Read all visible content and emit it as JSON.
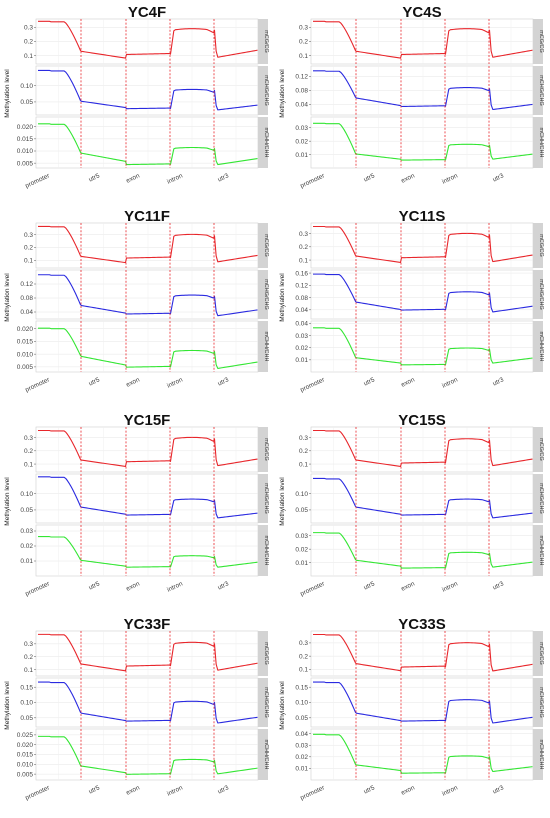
{
  "figure": {
    "ylabel": "Methylation level",
    "regions": [
      "promoter",
      "utr5",
      "exon",
      "intron",
      "utr3"
    ],
    "contexts": [
      "mCG/CG",
      "mCHG/CHG",
      "mCHH/CHH"
    ],
    "colors": {
      "mCG/CG": "#e8262b",
      "mCHG/CHG": "#2a2ae0",
      "mCHH/CHH": "#33e633",
      "boundary": "#e8262b",
      "strip": "#d3d3d3"
    }
  },
  "chart_data": [
    {
      "type": "line",
      "title": "YC4F",
      "xlabel": "",
      "ylabel": "Methylation level",
      "x_categories": [
        "promoter",
        "utr5",
        "exon",
        "intron",
        "utr3"
      ],
      "facets": [
        {
          "name": "mCG/CG",
          "ylim": [
            0.04,
            0.36
          ],
          "yticks": [
            0.1,
            0.2,
            0.3
          ],
          "yticklabels": [
            "0.1",
            "0.2",
            "0.3"
          ],
          "levels": {
            "promoter": 0.34,
            "utr5": 0.1,
            "exon": 0.11,
            "intron": 0.28,
            "utr3": 0.12
          }
        },
        {
          "name": "mCHG/CHG",
          "ylim": [
            0.01,
            0.16
          ],
          "yticks": [
            0.05,
            0.1
          ],
          "yticklabels": [
            "0.05",
            "0.10"
          ],
          "levels": {
            "promoter": 0.145,
            "utr5": 0.04,
            "exon": 0.03,
            "intron": 0.085,
            "utr3": 0.035
          }
        },
        {
          "name": "mCHH/CHH",
          "ylim": [
            0.003,
            0.024
          ],
          "yticks": [
            0.005,
            0.01,
            0.015,
            0.02
          ],
          "yticklabels": [
            "0.005",
            "0.010",
            "0.015",
            "0.020"
          ],
          "levels": {
            "promoter": 0.021,
            "utr5": 0.007,
            "exon": 0.0045,
            "intron": 0.011,
            "utr3": 0.006
          }
        }
      ]
    },
    {
      "type": "line",
      "title": "YC4S",
      "xlabel": "",
      "ylabel": "Methylation level",
      "x_categories": [
        "promoter",
        "utr5",
        "exon",
        "intron",
        "utr3"
      ],
      "facets": [
        {
          "name": "mCG/CG",
          "ylim": [
            0.04,
            0.36
          ],
          "yticks": [
            0.1,
            0.2,
            0.3
          ],
          "yticklabels": [
            "0.1",
            "0.2",
            "0.3"
          ],
          "levels": {
            "promoter": 0.34,
            "utr5": 0.1,
            "exon": 0.11,
            "intron": 0.28,
            "utr3": 0.12
          }
        },
        {
          "name": "mCHG/CHG",
          "ylim": [
            0.01,
            0.15
          ],
          "yticks": [
            0.04,
            0.08,
            0.12
          ],
          "yticklabels": [
            "0.04",
            "0.08",
            "0.12"
          ],
          "levels": {
            "promoter": 0.135,
            "utr5": 0.045,
            "exon": 0.035,
            "intron": 0.085,
            "utr3": 0.035
          }
        },
        {
          "name": "mCHH/CHH",
          "ylim": [
            0.0,
            0.038
          ],
          "yticks": [
            0.01,
            0.02,
            0.03
          ],
          "yticklabels": [
            "0.01",
            "0.02",
            "0.03"
          ],
          "levels": {
            "promoter": 0.033,
            "utr5": 0.008,
            "exon": 0.006,
            "intron": 0.017,
            "utr3": 0.009
          }
        }
      ]
    },
    {
      "type": "line",
      "title": "YC11F",
      "xlabel": "",
      "ylabel": "Methylation level",
      "x_categories": [
        "promoter",
        "utr5",
        "exon",
        "intron",
        "utr3"
      ],
      "facets": [
        {
          "name": "mCG/CG",
          "ylim": [
            0.04,
            0.39
          ],
          "yticks": [
            0.1,
            0.2,
            0.3
          ],
          "yticklabels": [
            "0.1",
            "0.2",
            "0.3"
          ],
          "levels": {
            "promoter": 0.36,
            "utr5": 0.1,
            "exon": 0.12,
            "intron": 0.29,
            "utr3": 0.12
          }
        },
        {
          "name": "mCHG/CHG",
          "ylim": [
            0.02,
            0.16
          ],
          "yticks": [
            0.04,
            0.08,
            0.12
          ],
          "yticklabels": [
            "0.04",
            "0.08",
            "0.12"
          ],
          "levels": {
            "promoter": 0.145,
            "utr5": 0.045,
            "exon": 0.035,
            "intron": 0.085,
            "utr3": 0.04
          }
        },
        {
          "name": "mCHH/CHH",
          "ylim": [
            0.003,
            0.023
          ],
          "yticks": [
            0.005,
            0.01,
            0.015,
            0.02
          ],
          "yticklabels": [
            "0.005",
            "0.010",
            "0.015",
            "0.020"
          ],
          "levels": {
            "promoter": 0.02,
            "utr5": 0.007,
            "exon": 0.005,
            "intron": 0.011,
            "utr3": 0.006
          }
        }
      ]
    },
    {
      "type": "line",
      "title": "YC11S",
      "xlabel": "",
      "ylabel": "Methylation level",
      "x_categories": [
        "promoter",
        "utr5",
        "exon",
        "intron",
        "utr3"
      ],
      "facets": [
        {
          "name": "mCG/CG",
          "ylim": [
            0.04,
            0.38
          ],
          "yticks": [
            0.1,
            0.2,
            0.3
          ],
          "yticklabels": [
            "0.1",
            "0.2",
            "0.3"
          ],
          "levels": {
            "promoter": 0.35,
            "utr5": 0.1,
            "exon": 0.12,
            "intron": 0.29,
            "utr3": 0.12
          }
        },
        {
          "name": "mCHG/CHG",
          "ylim": [
            0.01,
            0.17
          ],
          "yticks": [
            0.04,
            0.08,
            0.12,
            0.16
          ],
          "yticklabels": [
            "0.04",
            "0.08",
            "0.12",
            "0.16"
          ],
          "levels": {
            "promoter": 0.155,
            "utr5": 0.05,
            "exon": 0.04,
            "intron": 0.095,
            "utr3": 0.045
          }
        },
        {
          "name": "mCHH/CHH",
          "ylim": [
            0.0,
            0.042
          ],
          "yticks": [
            0.01,
            0.02,
            0.03,
            0.04
          ],
          "yticklabels": [
            "0.01",
            "0.02",
            "0.03",
            "0.04"
          ],
          "levels": {
            "promoter": 0.036,
            "utr5": 0.009,
            "exon": 0.006,
            "intron": 0.019,
            "utr3": 0.01
          }
        }
      ]
    },
    {
      "type": "line",
      "title": "YC15F",
      "xlabel": "",
      "ylabel": "Methylation level",
      "x_categories": [
        "promoter",
        "utr5",
        "exon",
        "intron",
        "utr3"
      ],
      "facets": [
        {
          "name": "mCG/CG",
          "ylim": [
            0.04,
            0.38
          ],
          "yticks": [
            0.1,
            0.2,
            0.3
          ],
          "yticklabels": [
            "0.1",
            "0.2",
            "0.3"
          ],
          "levels": {
            "promoter": 0.35,
            "utr5": 0.1,
            "exon": 0.12,
            "intron": 0.29,
            "utr3": 0.12
          }
        },
        {
          "name": "mCHG/CHG",
          "ylim": [
            0.01,
            0.16
          ],
          "yticks": [
            0.05,
            0.1
          ],
          "yticklabels": [
            "0.05",
            "0.10"
          ],
          "levels": {
            "promoter": 0.15,
            "utr5": 0.045,
            "exon": 0.035,
            "intron": 0.08,
            "utr3": 0.035
          }
        },
        {
          "name": "mCHH/CHH",
          "ylim": [
            0.0,
            0.034
          ],
          "yticks": [
            0.01,
            0.02,
            0.03
          ],
          "yticklabels": [
            "0.01",
            "0.02",
            "0.03"
          ],
          "levels": {
            "promoter": 0.026,
            "utr5": 0.008,
            "exon": 0.006,
            "intron": 0.013,
            "utr3": 0.008
          }
        }
      ]
    },
    {
      "type": "line",
      "title": "YC15S",
      "xlabel": "",
      "ylabel": "Methylation level",
      "x_categories": [
        "promoter",
        "utr5",
        "exon",
        "intron",
        "utr3"
      ],
      "facets": [
        {
          "name": "mCG/CG",
          "ylim": [
            0.04,
            0.38
          ],
          "yticks": [
            0.1,
            0.2,
            0.3
          ],
          "yticklabels": [
            "0.1",
            "0.2",
            "0.3"
          ],
          "levels": {
            "promoter": 0.35,
            "utr5": 0.1,
            "exon": 0.11,
            "intron": 0.28,
            "utr3": 0.12
          }
        },
        {
          "name": "mCHG/CHG",
          "ylim": [
            0.01,
            0.16
          ],
          "yticks": [
            0.05,
            0.1
          ],
          "yticklabels": [
            "0.05",
            "0.10"
          ],
          "levels": {
            "promoter": 0.145,
            "utr5": 0.045,
            "exon": 0.035,
            "intron": 0.08,
            "utr3": 0.035
          }
        },
        {
          "name": "mCHH/CHH",
          "ylim": [
            0.0,
            0.038
          ],
          "yticks": [
            0.01,
            0.02,
            0.03
          ],
          "yticklabels": [
            "0.01",
            "0.02",
            "0.03"
          ],
          "levels": {
            "promoter": 0.032,
            "utr5": 0.009,
            "exon": 0.006,
            "intron": 0.017,
            "utr3": 0.009
          }
        }
      ]
    },
    {
      "type": "line",
      "title": "YC33F",
      "xlabel": "",
      "ylabel": "Methylation level",
      "x_categories": [
        "promoter",
        "utr5",
        "exon",
        "intron",
        "utr3"
      ],
      "facets": [
        {
          "name": "mCG/CG",
          "ylim": [
            0.05,
            0.4
          ],
          "yticks": [
            0.1,
            0.2,
            0.3
          ],
          "yticklabels": [
            "0.1",
            "0.2",
            "0.3"
          ],
          "levels": {
            "promoter": 0.37,
            "utr5": 0.11,
            "exon": 0.13,
            "intron": 0.3,
            "utr3": 0.13
          }
        },
        {
          "name": "mCHG/CHG",
          "ylim": [
            0.02,
            0.18
          ],
          "yticks": [
            0.05,
            0.1,
            0.15
          ],
          "yticklabels": [
            "0.05",
            "0.10",
            "0.15"
          ],
          "levels": {
            "promoter": 0.165,
            "utr5": 0.05,
            "exon": 0.04,
            "intron": 0.1,
            "utr3": 0.045
          }
        },
        {
          "name": "mCHH/CHH",
          "ylim": [
            0.002,
            0.028
          ],
          "yticks": [
            0.005,
            0.01,
            0.015,
            0.02,
            0.025
          ],
          "yticklabels": [
            "0.005",
            "0.010",
            "0.015",
            "0.020",
            "0.025"
          ],
          "levels": {
            "promoter": 0.024,
            "utr5": 0.007,
            "exon": 0.005,
            "intron": 0.012,
            "utr3": 0.007
          }
        }
      ]
    },
    {
      "type": "line",
      "title": "YC33S",
      "xlabel": "",
      "ylabel": "Methylation level",
      "x_categories": [
        "promoter",
        "utr5",
        "exon",
        "intron",
        "utr3"
      ],
      "facets": [
        {
          "name": "mCG/CG",
          "ylim": [
            0.05,
            0.39
          ],
          "yticks": [
            0.1,
            0.2,
            0.3
          ],
          "yticklabels": [
            "0.1",
            "0.2",
            "0.3"
          ],
          "levels": {
            "promoter": 0.36,
            "utr5": 0.11,
            "exon": 0.12,
            "intron": 0.29,
            "utr3": 0.12
          }
        },
        {
          "name": "mCHG/CHG",
          "ylim": [
            0.02,
            0.18
          ],
          "yticks": [
            0.05,
            0.1,
            0.15
          ],
          "yticklabels": [
            "0.05",
            "0.10",
            "0.15"
          ],
          "levels": {
            "promoter": 0.165,
            "utr5": 0.05,
            "exon": 0.04,
            "intron": 0.105,
            "utr3": 0.045
          }
        },
        {
          "name": "mCHH/CHH",
          "ylim": [
            0.0,
            0.044
          ],
          "yticks": [
            0.01,
            0.02,
            0.03,
            0.04
          ],
          "yticklabels": [
            "0.01",
            "0.02",
            "0.03",
            "0.04"
          ],
          "levels": {
            "promoter": 0.039,
            "utr5": 0.01,
            "exon": 0.006,
            "intron": 0.02,
            "utr3": 0.01
          }
        }
      ]
    }
  ]
}
